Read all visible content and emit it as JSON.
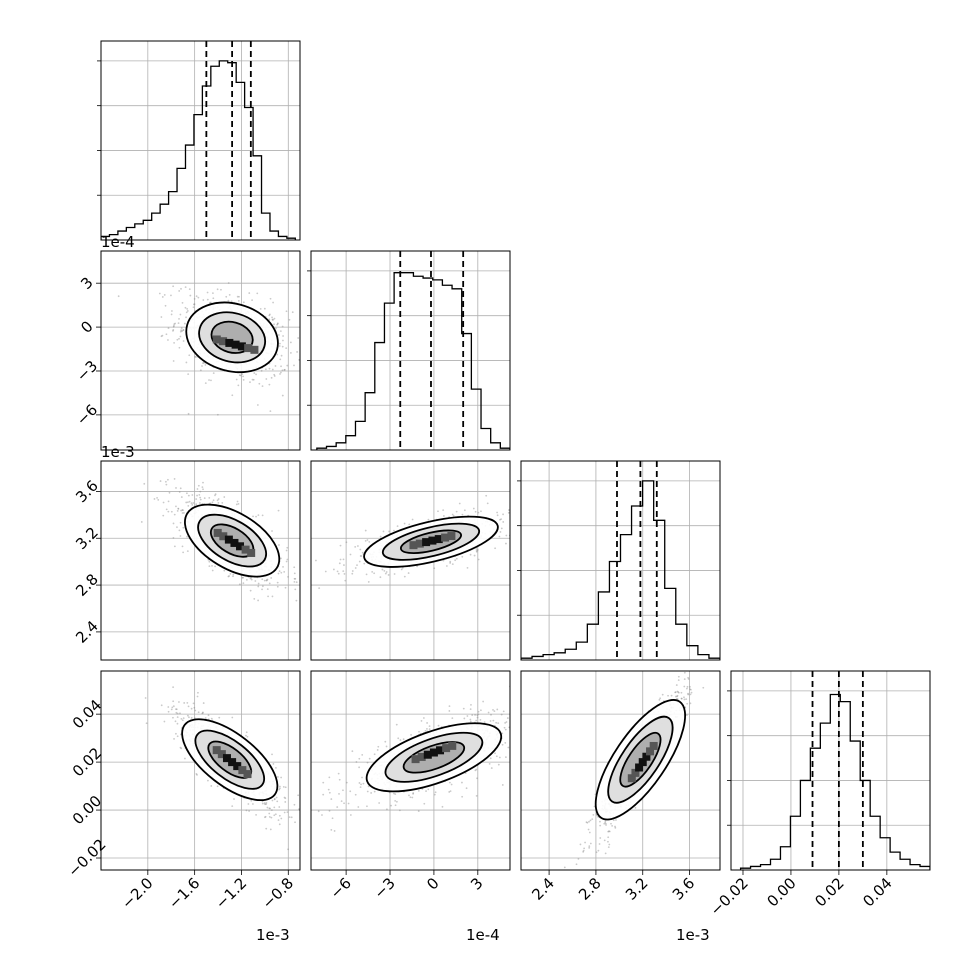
{
  "chart_data": {
    "type": "corner",
    "parameters": [
      {
        "range": [
          -2.4,
          -0.7
        ],
        "ticks": [
          "-2.0",
          "-1.6",
          "-1.2",
          "-0.8"
        ],
        "tick_values": [
          -2.0,
          -1.6,
          -1.2,
          -0.8
        ],
        "offset_label": "1e-3",
        "quantiles": [
          -1.5,
          -1.28,
          -1.12
        ],
        "hist": [
          0.02,
          0.03,
          0.05,
          0.07,
          0.09,
          0.11,
          0.15,
          0.2,
          0.27,
          0.4,
          0.53,
          0.7,
          0.86,
          0.97,
          1.0,
          0.99,
          0.88,
          0.74,
          0.47,
          0.15,
          0.05,
          0.02,
          0.01
        ],
        "hist_range": [
          -2.4,
          -0.74
        ]
      },
      {
        "range": [
          -8.4,
          5.2
        ],
        "ticks": [
          "-6",
          "-3",
          "0",
          "3"
        ],
        "tick_values": [
          -6,
          -3,
          0,
          3
        ],
        "offset_label": "1e-4",
        "quantiles": [
          -2.3,
          -0.2,
          2.0
        ],
        "hist": [
          0.01,
          0.02,
          0.04,
          0.08,
          0.16,
          0.32,
          0.6,
          0.82,
          0.99,
          0.99,
          0.97,
          0.96,
          0.95,
          0.92,
          0.9,
          0.65,
          0.34,
          0.12,
          0.04,
          0.01
        ],
        "hist_range": [
          -8.0,
          5.2
        ]
      },
      {
        "range": [
          2.16,
          3.86
        ],
        "ticks": [
          "2.4",
          "2.8",
          "3.2",
          "3.6"
        ],
        "tick_values": [
          2.4,
          2.8,
          3.2,
          3.6
        ],
        "offset_label": "1e-3",
        "quantiles": [
          2.98,
          3.18,
          3.32
        ],
        "hist": [
          0.01,
          0.02,
          0.03,
          0.04,
          0.06,
          0.1,
          0.2,
          0.38,
          0.55,
          0.7,
          0.86,
          1.0,
          0.78,
          0.4,
          0.2,
          0.08,
          0.03,
          0.01
        ],
        "hist_range": [
          2.16,
          3.86
        ]
      },
      {
        "range": [
          -0.025,
          0.058
        ],
        "ticks": [
          "-0.02",
          "0.00",
          "0.02",
          "0.04"
        ],
        "tick_values": [
          -0.02,
          0.0,
          0.02,
          0.04
        ],
        "offset_label": "",
        "quantiles": [
          0.009,
          0.02,
          0.03
        ],
        "hist": [
          0.01,
          0.02,
          0.03,
          0.06,
          0.13,
          0.3,
          0.5,
          0.68,
          0.82,
          0.98,
          0.94,
          0.72,
          0.5,
          0.3,
          0.18,
          0.1,
          0.06,
          0.03,
          0.02
        ],
        "hist_range": [
          -0.021,
          0.058
        ]
      }
    ],
    "pairs": [
      {
        "x": 0,
        "y": 1,
        "center": [
          -1.28,
          -0.7
        ],
        "slope": -2.2,
        "spread": [
          0.16,
          0.9
        ],
        "peak": [
          -1.25,
          -1.2
        ]
      },
      {
        "x": 0,
        "y": 2,
        "center": [
          -1.28,
          3.18
        ],
        "slope": -0.6,
        "spread": [
          0.16,
          0.09
        ],
        "peak": [
          -1.26,
          3.16
        ]
      },
      {
        "x": 0,
        "y": 3,
        "center": [
          -1.3,
          0.021
        ],
        "slope": -0.038,
        "spread": [
          0.16,
          0.004
        ],
        "peak": [
          -1.28,
          0.02
        ]
      },
      {
        "x": 1,
        "y": 2,
        "center": [
          -0.2,
          3.17
        ],
        "slope": 0.03,
        "spread": [
          1.9,
          0.06
        ],
        "peak": [
          -0.1,
          3.18
        ]
      },
      {
        "x": 1,
        "y": 3,
        "center": [
          0.0,
          0.022
        ],
        "slope": 0.0022,
        "spread": [
          1.9,
          0.004
        ],
        "peak": [
          0.0,
          0.024
        ]
      },
      {
        "x": 2,
        "y": 3,
        "center": [
          3.18,
          0.021
        ],
        "slope": 0.072,
        "spread": [
          0.14,
          0.004
        ],
        "peak": [
          3.2,
          0.02
        ]
      }
    ]
  }
}
